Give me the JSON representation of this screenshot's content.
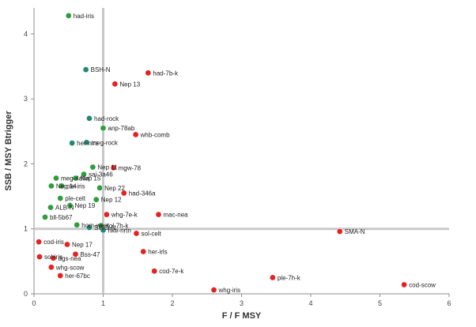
{
  "chart_data": {
    "type": "scatter",
    "xlabel": "F / F MSY",
    "ylabel": "SSB / MSY Btrigger",
    "xlim": [
      0,
      6
    ],
    "ylim": [
      0,
      4.4
    ],
    "xticks": [
      0,
      1,
      2,
      3,
      4,
      5,
      6
    ],
    "yticks": [
      0,
      1,
      2,
      3,
      4
    ],
    "reference_lines": {
      "x": 1,
      "y": 1,
      "color": "#c8c8c8"
    },
    "grid": false,
    "colors": {
      "green": "#2e9e3a",
      "teal": "#1f8a73",
      "red": "#e32222"
    },
    "points": [
      {
        "label": "had-iris",
        "x": 0.5,
        "y": 4.28,
        "color": "green"
      },
      {
        "label": "BSH-N",
        "x": 0.75,
        "y": 3.45,
        "color": "teal"
      },
      {
        "label": "had-7b-k",
        "x": 1.65,
        "y": 3.4,
        "color": "red"
      },
      {
        "label": "Nep 13",
        "x": 1.17,
        "y": 3.23,
        "color": "red"
      },
      {
        "label": "had-rock",
        "x": 0.8,
        "y": 2.7,
        "color": "teal"
      },
      {
        "label": "anp-78ab",
        "x": 1.0,
        "y": 2.55,
        "color": "green"
      },
      {
        "label": "whb-comb",
        "x": 1.47,
        "y": 2.45,
        "color": "red"
      },
      {
        "label": "her-nirs",
        "x": 0.55,
        "y": 2.32,
        "color": "teal"
      },
      {
        "label": "meg-rock",
        "x": 0.76,
        "y": 2.33,
        "color": "teal"
      },
      {
        "label": "Nep 11",
        "x": 0.85,
        "y": 1.95,
        "color": "green"
      },
      {
        "label": "mgw-78",
        "x": 1.15,
        "y": 1.94,
        "color": "red"
      },
      {
        "label": "meg-4a6a",
        "x": 0.32,
        "y": 1.78,
        "color": "green"
      },
      {
        "label": "sai-3a46",
        "x": 0.72,
        "y": 1.84,
        "color": "green"
      },
      {
        "label": "Nep 15",
        "x": 0.6,
        "y": 1.78,
        "color": "green"
      },
      {
        "label": "Nep 14",
        "x": 0.25,
        "y": 1.66,
        "color": "green"
      },
      {
        "label": "ple-iris",
        "x": 0.4,
        "y": 1.66,
        "color": "green"
      },
      {
        "label": "Nep 22",
        "x": 0.95,
        "y": 1.63,
        "color": "green"
      },
      {
        "label": "had-346a",
        "x": 1.3,
        "y": 1.55,
        "color": "red"
      },
      {
        "label": "ple-celt",
        "x": 0.38,
        "y": 1.47,
        "color": "green"
      },
      {
        "label": "Nep 12",
        "x": 0.9,
        "y": 1.45,
        "color": "green"
      },
      {
        "label": "ALB-N",
        "x": 0.24,
        "y": 1.33,
        "color": "green"
      },
      {
        "label": "bll-5b67",
        "x": 0.16,
        "y": 1.18,
        "color": "green"
      },
      {
        "label": "Nep 19",
        "x": 0.52,
        "y": 1.36,
        "color": "green"
      },
      {
        "label": "whg-7e-k",
        "x": 1.05,
        "y": 1.22,
        "color": "red"
      },
      {
        "label": "mac-nea",
        "x": 1.8,
        "y": 1.22,
        "color": "red"
      },
      {
        "label": "sol-7h-k",
        "x": 0.97,
        "y": 1.05,
        "color": "green"
      },
      {
        "label": "hom-west",
        "x": 0.62,
        "y": 1.06,
        "color": "green"
      },
      {
        "label": "SWO-N",
        "x": 0.8,
        "y": 1.02,
        "color": "teal"
      },
      {
        "label": "hke-nrtn",
        "x": 1.0,
        "y": 0.98,
        "color": "teal"
      },
      {
        "label": "sol-celt",
        "x": 1.48,
        "y": 0.93,
        "color": "red"
      },
      {
        "label": "SMA-N",
        "x": 4.42,
        "y": 0.96,
        "color": "red"
      },
      {
        "label": "cod-iris",
        "x": 0.07,
        "y": 0.8,
        "color": "red"
      },
      {
        "label": "Nep 17",
        "x": 0.48,
        "y": 0.76,
        "color": "red"
      },
      {
        "label": "her-irls",
        "x": 1.58,
        "y": 0.65,
        "color": "red"
      },
      {
        "label": "sol-iris",
        "x": 0.08,
        "y": 0.57,
        "color": "red"
      },
      {
        "label": "Bss-47",
        "x": 0.6,
        "y": 0.61,
        "color": "red"
      },
      {
        "label": "dgs-nea",
        "x": 0.28,
        "y": 0.55,
        "color": "red"
      },
      {
        "label": "whg-scow",
        "x": 0.25,
        "y": 0.41,
        "color": "red"
      },
      {
        "label": "cod-7e-k",
        "x": 1.74,
        "y": 0.35,
        "color": "red"
      },
      {
        "label": "ple-7h-k",
        "x": 3.45,
        "y": 0.25,
        "color": "red"
      },
      {
        "label": "her-67bc",
        "x": 0.38,
        "y": 0.28,
        "color": "red"
      },
      {
        "label": "cod-scow",
        "x": 5.35,
        "y": 0.14,
        "color": "red"
      },
      {
        "label": "whg-iris",
        "x": 2.6,
        "y": 0.06,
        "color": "red"
      }
    ]
  }
}
